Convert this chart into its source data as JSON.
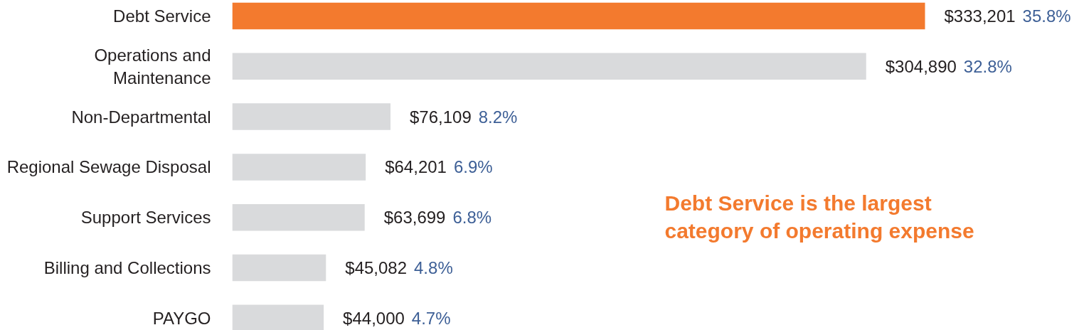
{
  "chart_data": {
    "type": "bar",
    "orientation": "horizontal",
    "categories": [
      "Debt Service",
      "Operations and Maintenance",
      "Non-Departmental",
      "Regional Sewage Disposal",
      "Support Services",
      "Billing and Collections",
      "PAYGO"
    ],
    "values": [
      333201,
      304890,
      76109,
      64201,
      63699,
      45082,
      44000
    ],
    "colors": [
      "#f37a2e",
      "#d9dadc",
      "#d9dadc",
      "#d9dadc",
      "#d9dadc",
      "#d9dadc",
      "#d9dadc"
    ],
    "value_labels": [
      "$333,201 35.8%",
      "$304,890 32.8%",
      "$76,109 8.2%",
      "$64,201 6.9%",
      "$63,699 6.8%",
      "$45,082 4.8%",
      "$44,000 4.7%"
    ],
    "annotations": [
      "Debt Service is the largest category of operating expense"
    ],
    "tick_labels": "y"
  }
}
